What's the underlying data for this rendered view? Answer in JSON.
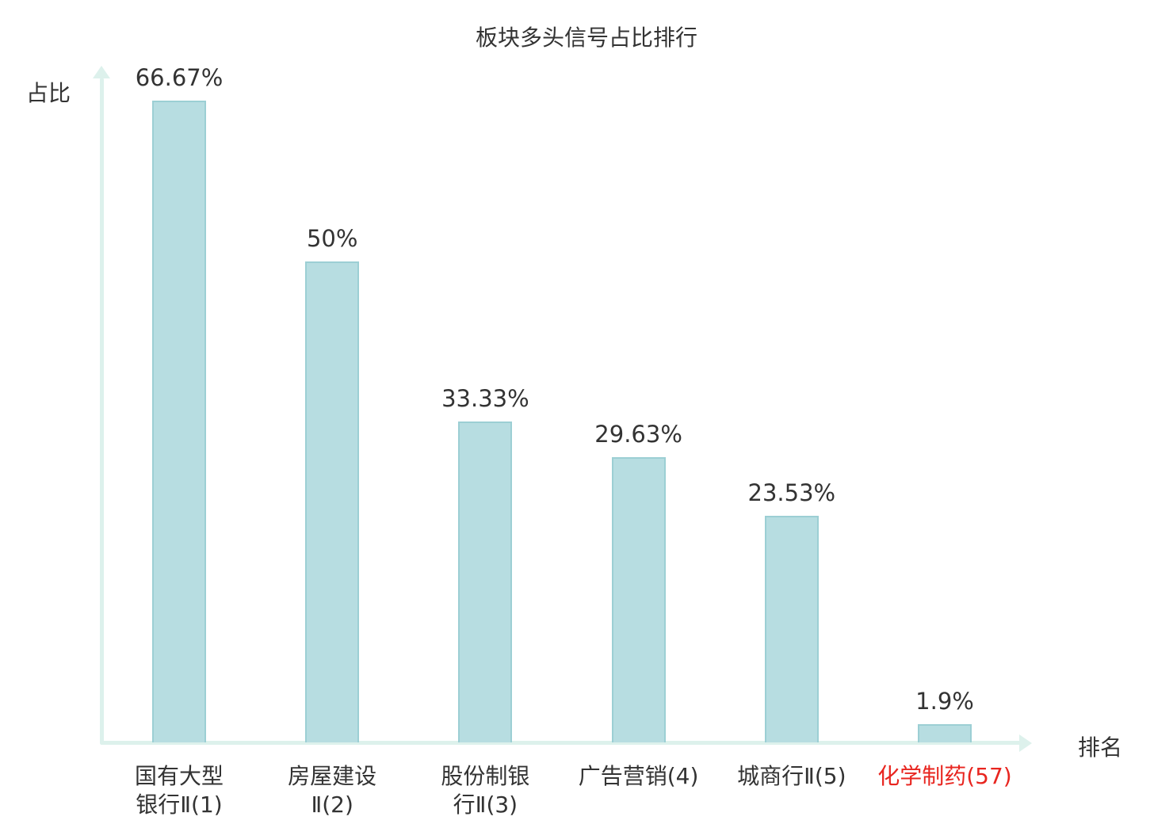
{
  "chart_data": {
    "type": "bar",
    "title": "板块多头信号占比排行",
    "xlabel": "排名",
    "ylabel": "占比",
    "categories": [
      "国有大型银行Ⅱ(1)",
      "房屋建设Ⅱ(2)",
      "股份制银行Ⅱ(3)",
      "广告营销(4)",
      "城商行Ⅱ(5)",
      "化学制药(57)"
    ],
    "category_lines": [
      [
        "国有大型",
        "银行Ⅱ(1)"
      ],
      [
        "房屋建设",
        "Ⅱ(2)"
      ],
      [
        "股份制银",
        "行Ⅱ(3)"
      ],
      [
        "广告营销(4)"
      ],
      [
        "城商行Ⅱ(5)"
      ],
      [
        "化学制药(57)"
      ]
    ],
    "values": [
      66.67,
      50,
      33.33,
      29.63,
      23.53,
      1.9
    ],
    "value_labels": [
      "66.67%",
      "50%",
      "33.33%",
      "29.63%",
      "23.53%",
      "1.9%"
    ],
    "highlight_index": 5,
    "ylim": [
      0,
      70
    ],
    "grid": false,
    "legend_position": "none",
    "colors": {
      "bar_fill": "#b7dde1",
      "bar_edge": "#9ccfd4",
      "axis": "#ddf1ec",
      "text": "#333333",
      "highlight_text": "#e8251f"
    }
  }
}
